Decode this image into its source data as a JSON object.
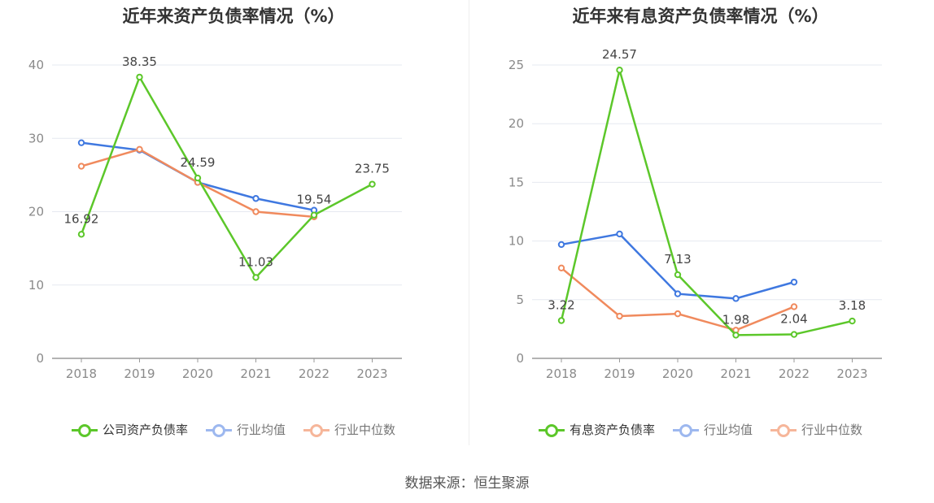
{
  "source_text": "数据来源：恒生聚源",
  "chart_data": [
    {
      "type": "line",
      "title": "近年来资产负债率情况（%）",
      "x": [
        "2018",
        "2019",
        "2020",
        "2021",
        "2022",
        "2023"
      ],
      "ylim": [
        0,
        40
      ],
      "yticks": [
        0,
        10,
        20,
        30,
        40
      ],
      "grid": true,
      "legend_position": "bottom",
      "series": [
        {
          "name": "公司资产负债率",
          "color": "#5cc72a",
          "values": [
            16.92,
            38.35,
            24.59,
            11.03,
            19.54,
            23.75
          ],
          "labels": true
        },
        {
          "name": "行业均值",
          "color": "#3f78e0",
          "values": [
            29.4,
            28.4,
            24.0,
            21.8,
            20.2,
            null
          ],
          "labels": false
        },
        {
          "name": "行业中位数",
          "color": "#f08a5d",
          "values": [
            26.2,
            28.5,
            24.0,
            20.0,
            19.3,
            null
          ],
          "labels": false
        }
      ]
    },
    {
      "type": "line",
      "title": "近年来有息资产负债率情况（%）",
      "x": [
        "2018",
        "2019",
        "2020",
        "2021",
        "2022",
        "2023"
      ],
      "ylim": [
        0,
        25
      ],
      "yticks": [
        0,
        5,
        10,
        15,
        20,
        25
      ],
      "grid": true,
      "legend_position": "bottom",
      "series": [
        {
          "name": "有息资产负债率",
          "color": "#5cc72a",
          "values": [
            3.22,
            24.57,
            7.13,
            1.98,
            2.04,
            3.18
          ],
          "labels": true
        },
        {
          "name": "行业均值",
          "color": "#3f78e0",
          "values": [
            9.7,
            10.6,
            5.5,
            5.1,
            6.5,
            null
          ],
          "labels": false
        },
        {
          "name": "行业中位数",
          "color": "#f08a5d",
          "values": [
            7.7,
            3.6,
            3.8,
            2.4,
            4.4,
            null
          ],
          "labels": false
        }
      ]
    }
  ]
}
